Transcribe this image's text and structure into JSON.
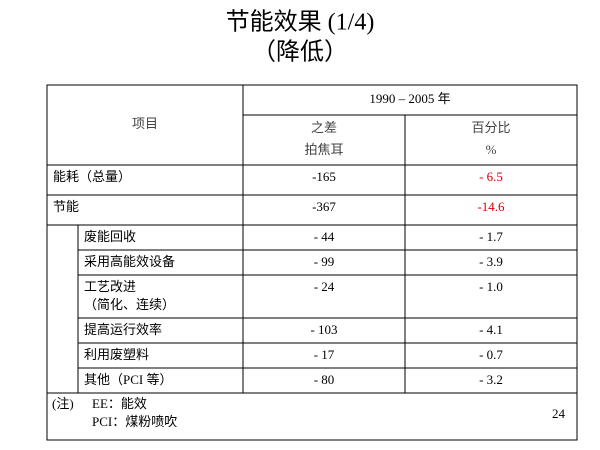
{
  "header": {
    "title": "节能效果 (1/4)",
    "subtitle": "（降低）"
  },
  "table": {
    "column_header": "项目",
    "period": "1990 – 2005 年",
    "columns": [
      {
        "line1": "之差",
        "line2": "拍焦耳"
      },
      {
        "line1": "百分比",
        "line2": "%"
      }
    ],
    "rows": [
      {
        "label": [
          "能耗（总量）"
        ],
        "diff": "-165",
        "pct": "- 6.5"
      },
      {
        "label": [
          "节能"
        ],
        "diff": "-367",
        "pct": "-14.6",
        "items": [
          {
            "label": [
              "废能回收"
            ],
            "diff": "- 44",
            "pct": "- 1.7"
          },
          {
            "label": [
              "采用高能效设备"
            ],
            "diff": "- 99",
            "pct": "- 3.9"
          },
          {
            "label": [
              "工艺改进",
              "（简化、连续）"
            ],
            "diff": "- 24",
            "pct": "- 1.0"
          },
          {
            "label": [
              "提高运行效率"
            ],
            "diff": "- 103",
            "pct": "- 4.1"
          },
          {
            "label": [
              "利用废塑料"
            ],
            "diff": "- 17",
            "pct": "- 0.7"
          },
          {
            "label": [
              "其他（PCI 等）"
            ],
            "diff": "- 80",
            "pct": "- 3.2"
          }
        ]
      }
    ]
  },
  "note": {
    "label": "(注)",
    "lines": [
      "EE：能效",
      "PCI：煤粉喷吹"
    ]
  },
  "page_number": "24"
}
